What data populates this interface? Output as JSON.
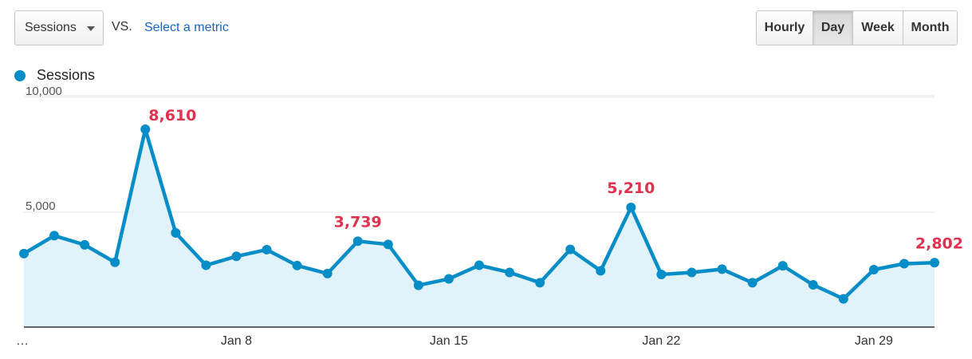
{
  "controls": {
    "metric_value": "Sessions",
    "vs_label": "VS.",
    "select_metric_label": "Select a metric",
    "ranges": [
      "Hourly",
      "Day",
      "Week",
      "Month"
    ],
    "active_range": "Day"
  },
  "colors": {
    "series": "#058dc7",
    "fill": "#e1f2fa",
    "annotation": "#e0324e",
    "grid": "#e6e6e6"
  },
  "chart_data": {
    "type": "area",
    "legend": "Sessions",
    "legend_position": "top-left",
    "grid": true,
    "ylim": [
      0,
      10000
    ],
    "y_ticks": [
      {
        "value": 10000,
        "label": "10,000"
      },
      {
        "value": 5000,
        "label": "5,000"
      }
    ],
    "x_ticks": [
      {
        "index": 0,
        "label": "…"
      },
      {
        "index": 7,
        "label": "Jan 8"
      },
      {
        "index": 14,
        "label": "Jan 15"
      },
      {
        "index": 21,
        "label": "Jan 22"
      },
      {
        "index": 28,
        "label": "Jan 29"
      }
    ],
    "series": [
      {
        "name": "Sessions",
        "values": [
          3200,
          3980,
          3580,
          2820,
          8610,
          4100,
          2690,
          3080,
          3370,
          2680,
          2330,
          3739,
          3600,
          1820,
          2100,
          2690,
          2380,
          1930,
          3380,
          2450,
          5210,
          2290,
          2380,
          2520,
          1930,
          2670,
          1840,
          1230,
          2500,
          2760,
          2802
        ]
      }
    ],
    "annotations": [
      {
        "index": 4,
        "label": "8,610"
      },
      {
        "index": 11,
        "label": "3,739"
      },
      {
        "index": 20,
        "label": "5,210"
      },
      {
        "index": 30,
        "label": "2,802"
      }
    ]
  }
}
